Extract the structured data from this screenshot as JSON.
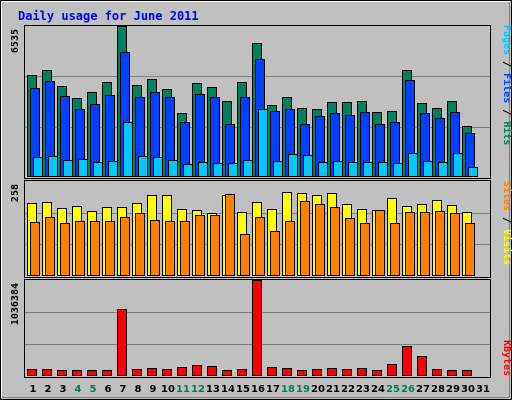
{
  "title": "Daily usage for June 2011",
  "colors": {
    "background": "#c0c0c0",
    "title": "#0000ff",
    "hits": "#00805c",
    "files": "#0040ff",
    "pages": "#00c8ff",
    "visits": "#ffff00",
    "sites": "#ff8000",
    "kbytes": "#ff0000",
    "weekend_day": "#00805c",
    "weekday": "#000000"
  },
  "legend": {
    "top": [
      {
        "text": "Pages",
        "color": "#00c8ff"
      },
      {
        "text": " / ",
        "color": "#000000"
      },
      {
        "text": "Files",
        "color": "#0040ff"
      },
      {
        "text": " / ",
        "color": "#000000"
      },
      {
        "text": "Hits",
        "color": "#00805c"
      }
    ],
    "middle": [
      {
        "text": "Sites",
        "color": "#ff8000"
      },
      {
        "text": " / ",
        "color": "#000000"
      },
      {
        "text": "Visits",
        "color": "#ffff00"
      }
    ],
    "bottom": [
      {
        "text": "KBytes",
        "color": "#ff0000"
      }
    ]
  },
  "chart_data": {
    "type": "bar",
    "title": "Daily usage for June 2011",
    "categories": [
      "1",
      "2",
      "3",
      "4",
      "5",
      "6",
      "7",
      "8",
      "9",
      "10",
      "11",
      "12",
      "13",
      "14",
      "15",
      "16",
      "17",
      "18",
      "19",
      "20",
      "21",
      "22",
      "23",
      "24",
      "25",
      "26",
      "27",
      "28",
      "29",
      "30",
      "31"
    ],
    "weekend_days": [
      "4",
      "5",
      "11",
      "12",
      "18",
      "19",
      "25",
      "26"
    ],
    "panels": [
      {
        "id": "hits-files-pages",
        "ymax_label": "6535",
        "ymax": 6535,
        "series": [
          {
            "name": "Hits",
            "values": [
              4400,
              4650,
              3950,
              3400,
              3700,
              4100,
              6535,
              4000,
              4250,
              3800,
              2750,
              4050,
              3900,
              3300,
              4100,
              5800,
              3100,
              3450,
              3000,
              2950,
              3250,
              3250,
              3300,
              2800,
              2850,
              4650,
              3200,
              3000,
              3300,
              2200
            ]
          },
          {
            "name": "Files",
            "values": [
              3850,
              4150,
              3500,
              2950,
              3150,
              3550,
              5400,
              3450,
              3700,
              3450,
              2400,
              3600,
              3450,
              2300,
              3450,
              5100,
              2850,
              2950,
              2300,
              2650,
              2750,
              2700,
              2800,
              2300,
              2400,
              4200,
              2750,
              2550,
              2800,
              1900
            ]
          },
          {
            "name": "Pages",
            "values": [
              850,
              900,
              750,
              800,
              650,
              700,
              2400,
              900,
              850,
              750,
              550,
              650,
              600,
              600,
              750,
              2950,
              700,
              1000,
              950,
              650,
              700,
              650,
              650,
              650,
              600,
              1050,
              700,
              650,
              1050,
              450
            ]
          }
        ]
      },
      {
        "id": "visits-sites",
        "ymax_label": "258",
        "ymax": 258,
        "series": [
          {
            "name": "Visits",
            "values": [
              198,
              200,
              186,
              190,
              176,
              188,
              188,
              198,
              221,
              221,
              183,
              178,
              171,
              221,
              175,
              200,
              183,
              228,
              225,
              221,
              225,
              196,
              181,
              180,
              211,
              190,
              196,
              206,
              193,
              175
            ]
          },
          {
            "name": "Sites",
            "values": [
              148,
              160,
              145,
              150,
              150,
              150,
              160,
              171,
              153,
              150,
              150,
              165,
              165,
              223,
              113,
              160,
              123,
              150,
              205,
              196,
              188,
              158,
              145,
              180,
              143,
              173,
              173,
              176,
              171,
              143
            ]
          }
        ]
      },
      {
        "id": "kbytes",
        "ymax_label": "1036384",
        "ymax": 1036384,
        "series": [
          {
            "name": "KBytes",
            "values": [
              78000,
              75000,
              70000,
              70000,
              70000,
              65000,
              720000,
              75000,
              90000,
              80000,
              100000,
              115000,
              110000,
              70000,
              80000,
              1036384,
              95000,
              90000,
              70000,
              80000,
              85000,
              80000,
              85000,
              65000,
              130000,
              320000,
              220000,
              75000,
              65000,
              60000
            ]
          }
        ]
      }
    ]
  }
}
